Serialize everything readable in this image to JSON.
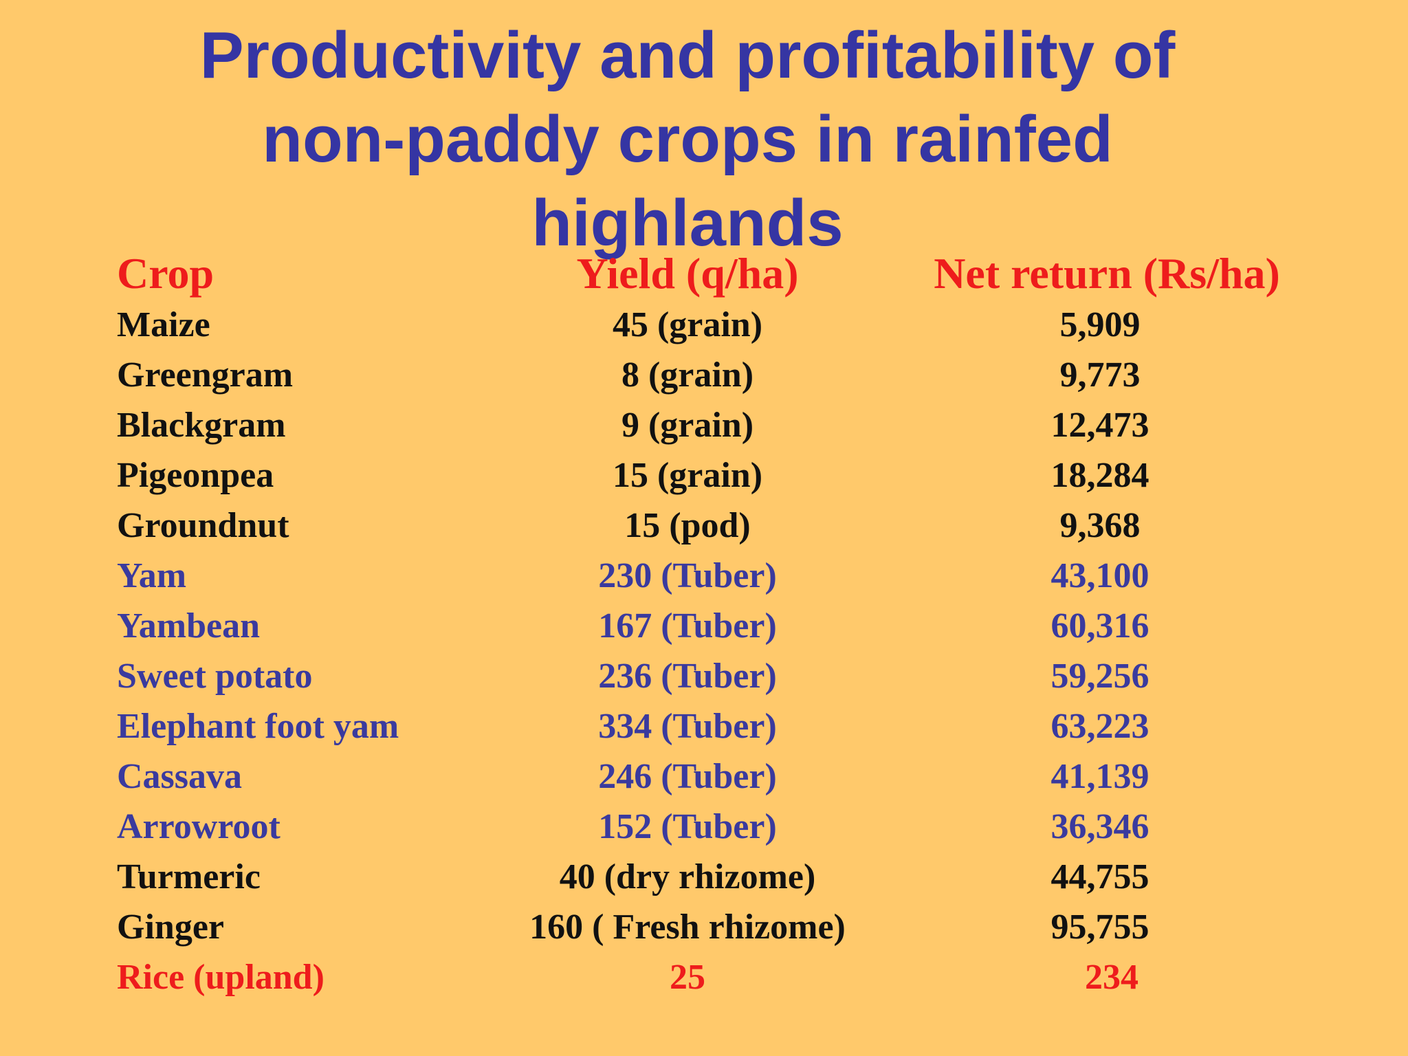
{
  "title": {
    "line1": "Productivity and profitability of",
    "line2": "non-paddy crops in rainfed",
    "line3": "highlands"
  },
  "table": {
    "headers": {
      "crop": "Crop",
      "yield": "Yield (q/ha)",
      "net_return": "Net return (Rs/ha)"
    },
    "rows": [
      {
        "crop": "Maize",
        "yield": "45 (grain)",
        "net_return": "5,909"
      },
      {
        "crop": "Greengram",
        "yield": "8 (grain)",
        "net_return": "9,773"
      },
      {
        "crop": "Blackgram",
        "yield": "9 (grain)",
        "net_return": "12,473"
      },
      {
        "crop": "Pigeonpea",
        "yield": "15 (grain)",
        "net_return": "18,284"
      },
      {
        "crop": "Groundnut",
        "yield": "15 (pod)",
        "net_return": "9,368"
      },
      {
        "crop": "Yam",
        "yield": "230 (Tuber)",
        "net_return": "43,100"
      },
      {
        "crop": "Yambean",
        "yield": "167 (Tuber)",
        "net_return": "60,316"
      },
      {
        "crop": "Sweet potato",
        "yield": "236 (Tuber)",
        "net_return": "59,256"
      },
      {
        "crop": "Elephant foot yam",
        "yield": "334 (Tuber)",
        "net_return": "63,223"
      },
      {
        "crop": "Cassava",
        "yield": "246 (Tuber)",
        "net_return": "41,139"
      },
      {
        "crop": "Arrowroot",
        "yield": "152 (Tuber)",
        "net_return": "36,346"
      },
      {
        "crop": "Turmeric",
        "yield": "40 (dry rhizome)",
        "net_return": "44,755"
      },
      {
        "crop": "Ginger",
        "yield": "160 ( Fresh rhizome)",
        "net_return": "95,755"
      },
      {
        "crop": "Rice (upland)",
        "yield": "25",
        "net_return": "234"
      }
    ]
  },
  "colors": {
    "background": "#ffc96b",
    "title": "#3535a3",
    "header": "#ee1c1c",
    "field_crops": "#111111",
    "tuber_crops": "#3a3a9e",
    "rice": "#ee1c1c"
  }
}
